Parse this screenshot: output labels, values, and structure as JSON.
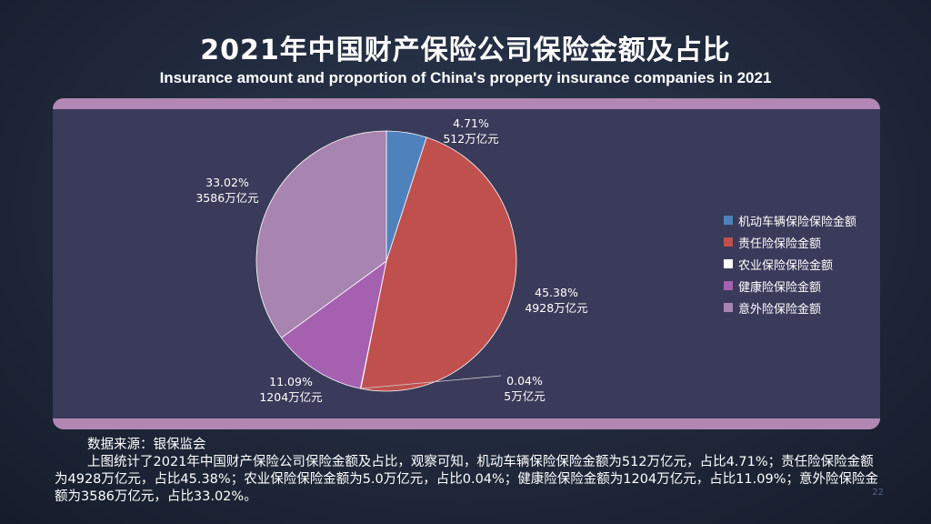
{
  "header": {
    "title": "2021年中国财产保险公司保险金额及占比",
    "subtitle": "Insurance amount and proportion of China's property insurance companies in 2021"
  },
  "chart_data": {
    "type": "pie",
    "title": "2021年中国财产保险公司保险金额及占比",
    "unit": "万亿元",
    "slices": [
      {
        "name": "机动车辆保险保险金额",
        "value": 512,
        "percent": 4.71,
        "pct_label": "4.71%",
        "val_label": "512万亿元",
        "color": "#4f81bd"
      },
      {
        "name": "责任险保险金额",
        "value": 4928,
        "percent": 45.38,
        "pct_label": "45.38%",
        "val_label": "4928万亿元",
        "color": "#c0504d"
      },
      {
        "name": "农业保险保险金额",
        "value": 5,
        "percent": 0.04,
        "pct_label": "0.04%",
        "val_label": "5万亿元",
        "color": "#ffffff"
      },
      {
        "name": "健康险保险金额",
        "value": 1204,
        "percent": 11.09,
        "pct_label": "11.09%",
        "val_label": "1204万亿元",
        "color": "#a660b0"
      },
      {
        "name": "意外险保险金额",
        "value": 3586,
        "percent": 33.02,
        "pct_label": "33.02%",
        "val_label": "3586万亿元",
        "color": "#a884b0"
      }
    ],
    "legend_position": "right"
  },
  "footer": {
    "source": "数据来源：银保监会",
    "text": "上图统计了2021年中国财产保险公司保险金额及占比，观察可知，机动车辆保险保险金额为512万亿元，占比4.71%；责任险保险金额为4928万亿元，占比45.38%；农业保险保险金额为5.0万亿元，占比0.04%；健康险保险金额为1204万亿元，占比11.09%；意外险保险金额为3586万亿元，占比33.02%。"
  },
  "page_number": "22"
}
